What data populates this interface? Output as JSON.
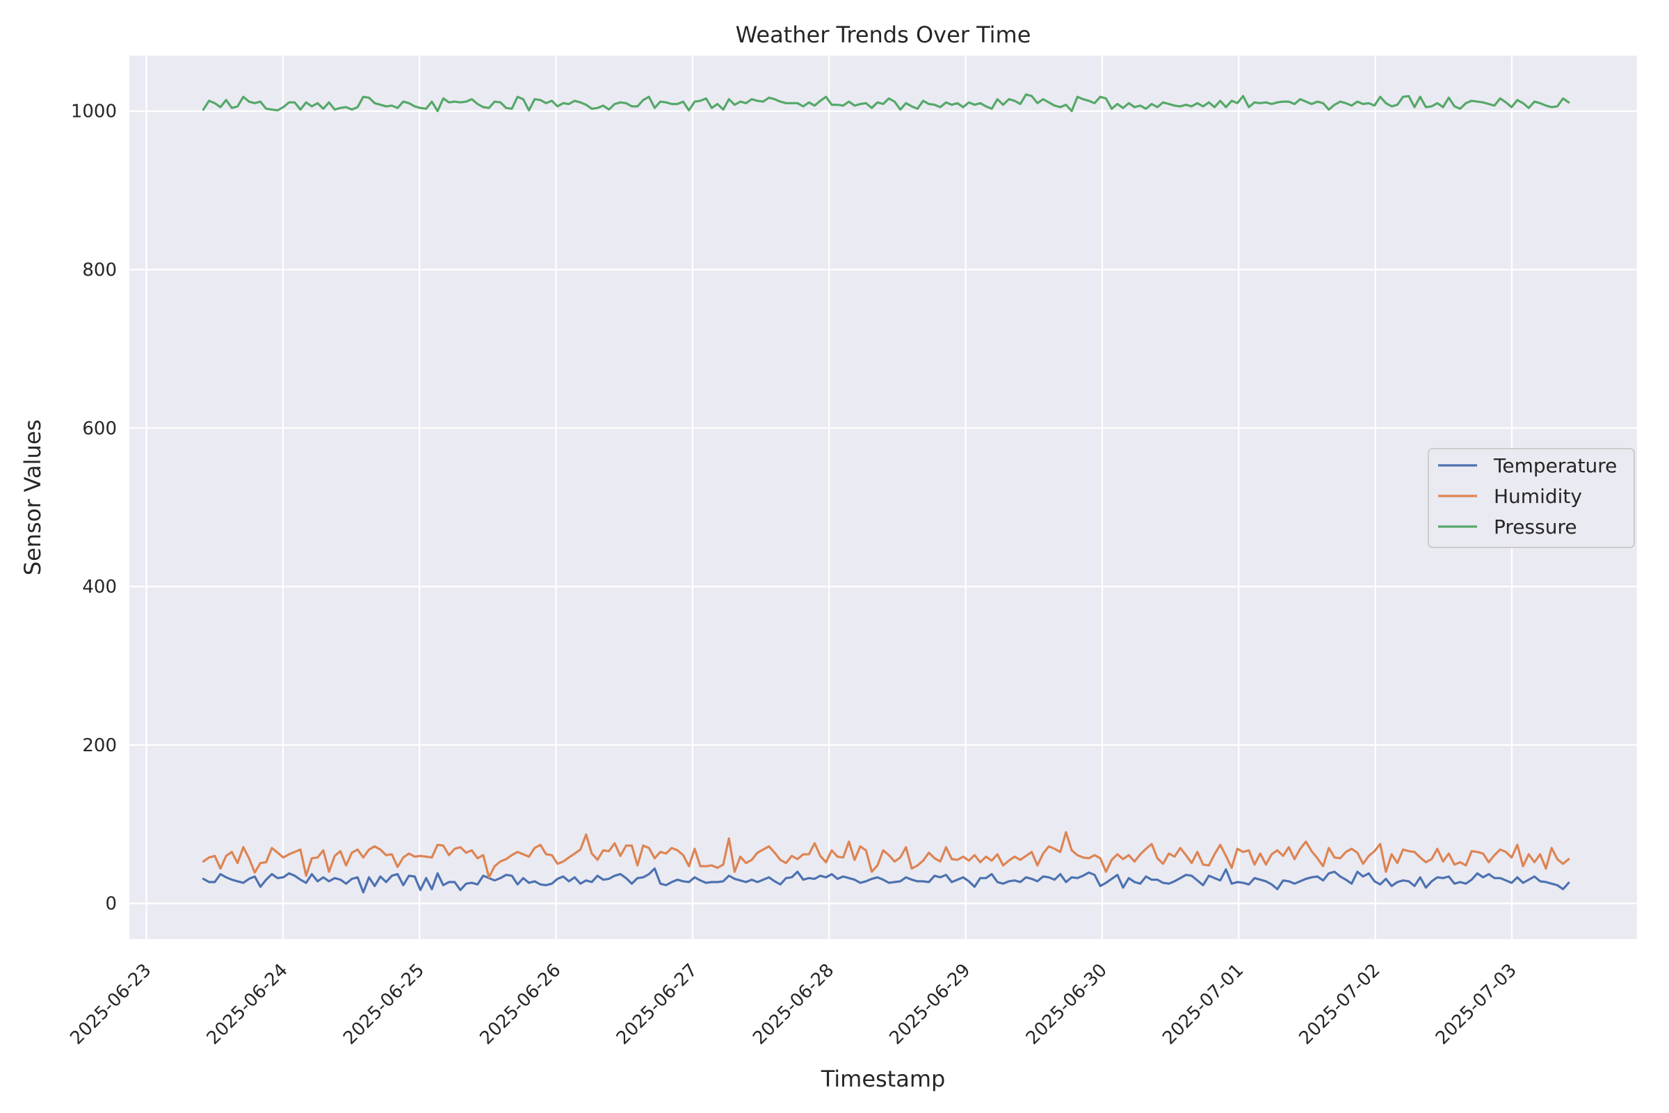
{
  "chart_data": {
    "type": "line",
    "title": "Weather Trends Over Time",
    "xlabel": "Timestamp",
    "ylabel": "Sensor Values",
    "x_ticks": [
      "2025-06-23",
      "2025-06-24",
      "2025-06-25",
      "2025-06-26",
      "2025-06-27",
      "2025-06-28",
      "2025-06-29",
      "2025-06-30",
      "2025-07-01",
      "2025-07-02",
      "2025-07-03"
    ],
    "y_ticks": [
      0,
      200,
      400,
      600,
      800,
      1000
    ],
    "ylim": [
      -45,
      1070
    ],
    "xlim": [
      "2025-06-22T21:00",
      "2025-07-03T22:00"
    ],
    "x_start": "2025-06-23T10:00",
    "x_end": "2025-07-03T10:00",
    "grid": true,
    "legend_position": "center-right",
    "series": [
      {
        "name": "Temperature",
        "color": "#4c72b0",
        "values": [
          31,
          27,
          27,
          37,
          33,
          30,
          28,
          26,
          31,
          34,
          21,
          30,
          37,
          32,
          33,
          38,
          35,
          30,
          26,
          37,
          28,
          33,
          28,
          32,
          30,
          25,
          31,
          33,
          14,
          33,
          22,
          34,
          27,
          35,
          37,
          23,
          35,
          34,
          17,
          32,
          18,
          38,
          23,
          27,
          27,
          17,
          25,
          26,
          24,
          35,
          32,
          29,
          32,
          36,
          35,
          24,
          32,
          26,
          28,
          24,
          23,
          25,
          31,
          34,
          28,
          33,
          25,
          29,
          27,
          35,
          30,
          31,
          35,
          37,
          32,
          25,
          32,
          33,
          37,
          44,
          25,
          23,
          27,
          30,
          28,
          27,
          33,
          29,
          26,
          27,
          27,
          28,
          35,
          31,
          29,
          27,
          30,
          27,
          30,
          33,
          28,
          24,
          32,
          33,
          40,
          30,
          32,
          31,
          35,
          33,
          37,
          31,
          34,
          32,
          30,
          26,
          28,
          31,
          33,
          30,
          26,
          27,
          28,
          33,
          30,
          28,
          28,
          27,
          35,
          33,
          36,
          27,
          30,
          33,
          28,
          21,
          32,
          32,
          37,
          27,
          25,
          28,
          29,
          27,
          33,
          31,
          28,
          34,
          33,
          30,
          37,
          27,
          33,
          32,
          35,
          39,
          36,
          22,
          26,
          31,
          36,
          20,
          32,
          27,
          25,
          34,
          30,
          30,
          26,
          25,
          28,
          32,
          36,
          35,
          29,
          23,
          35,
          32,
          29,
          43,
          25,
          27,
          26,
          24,
          32,
          30,
          28,
          24,
          18,
          29,
          28,
          25,
          28,
          31,
          33,
          34,
          29,
          38,
          40,
          34,
          30,
          25,
          40,
          34,
          38,
          28,
          24,
          31,
          22,
          27,
          29,
          28,
          22,
          33,
          20,
          28,
          33,
          32,
          34,
          25,
          27,
          25,
          30,
          38,
          33,
          37,
          32,
          32,
          29,
          26,
          33,
          26,
          30,
          34,
          28,
          27,
          25,
          23,
          18,
          26
        ]
      },
      {
        "name": "Humidity",
        "color": "#dd8452",
        "values": [
          53,
          58,
          60,
          44,
          60,
          65,
          51,
          71,
          57,
          39,
          51,
          52,
          70,
          64,
          58,
          62,
          65,
          68,
          35,
          57,
          58,
          67,
          40,
          60,
          66,
          48,
          64,
          68,
          58,
          68,
          72,
          68,
          61,
          62,
          46,
          58,
          63,
          59,
          60,
          59,
          58,
          74,
          73,
          61,
          69,
          71,
          64,
          67,
          57,
          61,
          33,
          47,
          53,
          56,
          61,
          65,
          62,
          59,
          70,
          74,
          62,
          61,
          50,
          53,
          58,
          63,
          68,
          87,
          63,
          55,
          67,
          66,
          76,
          60,
          73,
          73,
          48,
          73,
          70,
          57,
          65,
          63,
          70,
          67,
          61,
          47,
          69,
          47,
          47,
          48,
          45,
          49,
          82,
          40,
          59,
          51,
          55,
          64,
          68,
          72,
          64,
          55,
          51,
          60,
          56,
          62,
          62,
          76,
          60,
          52,
          67,
          59,
          58,
          78,
          55,
          72,
          67,
          40,
          48,
          67,
          61,
          53,
          58,
          71,
          44,
          48,
          54,
          64,
          57,
          53,
          71,
          56,
          55,
          59,
          54,
          61,
          52,
          59,
          54,
          62,
          48,
          54,
          59,
          55,
          60,
          65,
          48,
          63,
          72,
          69,
          65,
          90,
          67,
          61,
          58,
          57,
          61,
          57,
          40,
          55,
          62,
          56,
          61,
          53,
          62,
          69,
          75,
          57,
          50,
          63,
          59,
          70,
          61,
          51,
          65,
          49,
          48,
          62,
          74,
          60,
          45,
          69,
          65,
          67,
          49,
          63,
          49,
          62,
          67,
          60,
          71,
          56,
          69,
          78,
          66,
          57,
          47,
          70,
          58,
          57,
          65,
          69,
          64,
          50,
          60,
          66,
          75,
          40,
          62,
          51,
          68,
          66,
          65,
          58,
          52,
          56,
          69,
          53,
          63,
          49,
          52,
          48,
          66,
          65,
          63,
          52,
          61,
          68,
          65,
          58,
          74,
          47,
          62,
          52,
          62,
          44,
          70,
          56,
          50,
          56
        ]
      },
      {
        "name": "Pressure",
        "color": "#55a868",
        "values": [
          1002,
          1013,
          1010,
          1005,
          1014,
          1004,
          1006,
          1018,
          1012,
          1010,
          1012,
          1003,
          1002,
          1001,
          1005,
          1011,
          1011,
          1002,
          1011,
          1006,
          1010,
          1003,
          1011,
          1002,
          1004,
          1005,
          1002,
          1005,
          1018,
          1017,
          1010,
          1008,
          1006,
          1007,
          1004,
          1012,
          1010,
          1006,
          1004,
          1003,
          1012,
          1000,
          1016,
          1011,
          1012,
          1011,
          1012,
          1015,
          1009,
          1005,
          1004,
          1012,
          1011,
          1004,
          1003,
          1018,
          1015,
          1001,
          1015,
          1014,
          1010,
          1013,
          1006,
          1010,
          1009,
          1013,
          1011,
          1008,
          1003,
          1004,
          1007,
          1002,
          1009,
          1011,
          1010,
          1006,
          1006,
          1014,
          1018,
          1004,
          1012,
          1011,
          1009,
          1009,
          1012,
          1001,
          1012,
          1013,
          1016,
          1004,
          1009,
          1002,
          1015,
          1008,
          1012,
          1010,
          1015,
          1013,
          1012,
          1017,
          1015,
          1012,
          1010,
          1010,
          1010,
          1006,
          1011,
          1007,
          1013,
          1018,
          1008,
          1008,
          1007,
          1012,
          1007,
          1009,
          1010,
          1004,
          1011,
          1009,
          1016,
          1012,
          1002,
          1010,
          1006,
          1003,
          1013,
          1009,
          1008,
          1005,
          1011,
          1008,
          1010,
          1005,
          1011,
          1008,
          1010,
          1006,
          1003,
          1015,
          1008,
          1015,
          1013,
          1009,
          1021,
          1019,
          1010,
          1015,
          1011,
          1007,
          1005,
          1008,
          1000,
          1018,
          1015,
          1013,
          1010,
          1018,
          1016,
          1003,
          1009,
          1004,
          1010,
          1005,
          1007,
          1003,
          1009,
          1005,
          1011,
          1009,
          1007,
          1006,
          1008,
          1006,
          1010,
          1006,
          1011,
          1005,
          1013,
          1005,
          1013,
          1010,
          1019,
          1005,
          1011,
          1010,
          1011,
          1009,
          1011,
          1012,
          1012,
          1009,
          1015,
          1012,
          1009,
          1012,
          1010,
          1002,
          1008,
          1012,
          1010,
          1007,
          1012,
          1009,
          1010,
          1007,
          1018,
          1010,
          1006,
          1008,
          1018,
          1019,
          1005,
          1018,
          1005,
          1006,
          1010,
          1005,
          1017,
          1006,
          1003,
          1010,
          1013,
          1012,
          1011,
          1009,
          1007,
          1016,
          1011,
          1005,
          1014,
          1010,
          1004,
          1012,
          1010,
          1007,
          1005,
          1006,
          1016,
          1011
        ]
      }
    ]
  }
}
